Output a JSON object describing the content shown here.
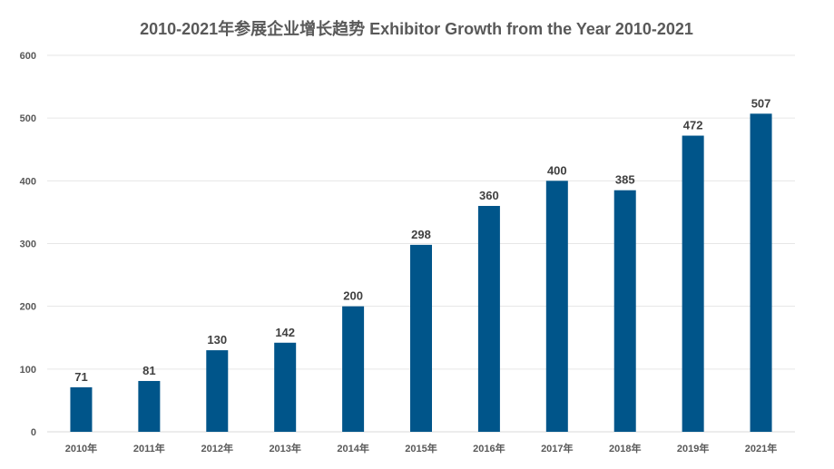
{
  "chart_data": {
    "type": "bar",
    "title": "2010-2021年参展企业增长趋势 Exhibitor Growth from the Year 2010-2021",
    "categories": [
      "2010年",
      "2011年",
      "2012年",
      "2013年",
      "2014年",
      "2015年",
      "2016年",
      "2017年",
      "2018年",
      "2019年",
      "2021年"
    ],
    "values": [
      71,
      81,
      130,
      142,
      200,
      298,
      360,
      400,
      385,
      472,
      507
    ],
    "ylim": [
      0,
      600
    ],
    "yticks": [
      0,
      100,
      200,
      300,
      400,
      500,
      600
    ],
    "grid": true,
    "legend": "none",
    "bar_color": "#00558a"
  }
}
